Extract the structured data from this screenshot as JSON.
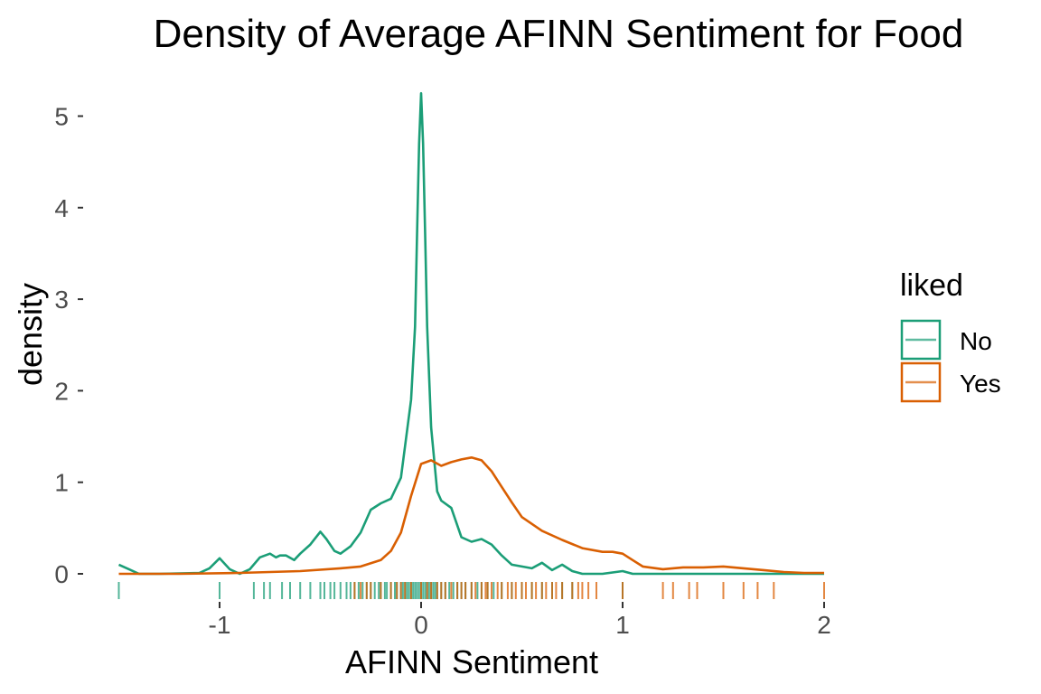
{
  "chart_data": {
    "type": "line",
    "title": "Density of Average AFINN Sentiment for Food",
    "xlabel": "AFINN Sentiment",
    "ylabel": "density",
    "xlim": [
      -1.5,
      2.0
    ],
    "ylim": [
      0,
      5.3
    ],
    "x_ticks": [
      -1,
      0,
      1,
      2
    ],
    "y_ticks": [
      0,
      1,
      2,
      3,
      4,
      5
    ],
    "x_tick_labels": [
      "-1",
      "0",
      "1",
      "2"
    ],
    "y_tick_labels": [
      "0",
      "1",
      "2",
      "3",
      "4",
      "5"
    ],
    "grid": false,
    "legend": {
      "title": "liked",
      "position": "right",
      "entries": [
        "No",
        "Yes"
      ]
    },
    "series": [
      {
        "name": "No",
        "color": "#1b9e77",
        "x": [
          -1.5,
          -1.45,
          -1.4,
          -1.3,
          -1.1,
          -1.05,
          -1.0,
          -0.95,
          -0.9,
          -0.85,
          -0.8,
          -0.75,
          -0.72,
          -0.7,
          -0.67,
          -0.63,
          -0.6,
          -0.55,
          -0.5,
          -0.47,
          -0.43,
          -0.4,
          -0.35,
          -0.3,
          -0.25,
          -0.2,
          -0.15,
          -0.1,
          -0.05,
          -0.03,
          -0.02,
          -0.01,
          0.0,
          0.01,
          0.02,
          0.03,
          0.05,
          0.08,
          0.1,
          0.15,
          0.2,
          0.25,
          0.3,
          0.35,
          0.4,
          0.45,
          0.5,
          0.55,
          0.6,
          0.65,
          0.7,
          0.75,
          0.8,
          0.9,
          1.0,
          1.05,
          1.2,
          1.5,
          2.0
        ],
        "y": [
          0.1,
          0.05,
          0.0,
          0.0,
          0.01,
          0.06,
          0.17,
          0.05,
          0.0,
          0.05,
          0.18,
          0.22,
          0.18,
          0.2,
          0.2,
          0.15,
          0.22,
          0.32,
          0.46,
          0.38,
          0.25,
          0.22,
          0.3,
          0.45,
          0.7,
          0.77,
          0.82,
          1.05,
          1.9,
          2.7,
          3.7,
          4.7,
          5.25,
          4.7,
          3.7,
          2.7,
          1.6,
          0.9,
          0.8,
          0.72,
          0.4,
          0.35,
          0.38,
          0.32,
          0.2,
          0.1,
          0.08,
          0.06,
          0.12,
          0.04,
          0.1,
          0.03,
          0.0,
          0.0,
          0.03,
          0.0,
          0.0,
          0.0,
          0.0
        ]
      },
      {
        "name": "Yes",
        "color": "#d95f02",
        "x": [
          -1.5,
          -1.2,
          -0.9,
          -0.6,
          -0.4,
          -0.3,
          -0.2,
          -0.15,
          -0.1,
          -0.05,
          0.0,
          0.05,
          0.1,
          0.15,
          0.2,
          0.25,
          0.3,
          0.35,
          0.4,
          0.45,
          0.5,
          0.6,
          0.7,
          0.8,
          0.9,
          0.95,
          1.0,
          1.05,
          1.1,
          1.2,
          1.3,
          1.4,
          1.5,
          1.6,
          1.7,
          1.8,
          1.9,
          2.0
        ],
        "y": [
          0.0,
          0.0,
          0.01,
          0.03,
          0.06,
          0.08,
          0.15,
          0.25,
          0.45,
          0.85,
          1.2,
          1.24,
          1.18,
          1.22,
          1.25,
          1.27,
          1.24,
          1.12,
          0.95,
          0.78,
          0.62,
          0.47,
          0.37,
          0.28,
          0.24,
          0.24,
          0.22,
          0.15,
          0.08,
          0.05,
          0.07,
          0.07,
          0.08,
          0.06,
          0.04,
          0.02,
          0.01,
          0.01
        ]
      }
    ],
    "rugs": [
      {
        "name": "No",
        "color": "#1b9e77",
        "x": [
          -1.5,
          -1.0,
          -0.83,
          -0.78,
          -0.75,
          -0.69,
          -0.65,
          -0.6,
          -0.55,
          -0.5,
          -0.48,
          -0.45,
          -0.43,
          -0.4,
          -0.37,
          -0.35,
          -0.33,
          -0.31,
          -0.29,
          -0.27,
          -0.25,
          -0.23,
          -0.21,
          -0.2,
          -0.18,
          -0.17,
          -0.15,
          -0.13,
          -0.12,
          -0.1,
          -0.09,
          -0.08,
          -0.07,
          -0.06,
          -0.05,
          -0.04,
          -0.03,
          -0.02,
          -0.01,
          0.0,
          0.01,
          0.02,
          0.03,
          0.04,
          0.05,
          0.06,
          0.07,
          0.08,
          0.1,
          0.12,
          0.14,
          0.16,
          0.18,
          0.2,
          0.22,
          0.25,
          0.28,
          0.3,
          0.33,
          0.36,
          0.4,
          0.45,
          0.5,
          0.55,
          0.6,
          0.65,
          0.7,
          0.75,
          1.0
        ]
      },
      {
        "name": "Yes",
        "color": "#d95f02",
        "x": [
          -0.33,
          -0.3,
          -0.27,
          -0.25,
          -0.2,
          -0.15,
          -0.12,
          -0.1,
          -0.08,
          -0.05,
          0.0,
          0.03,
          0.05,
          0.08,
          0.1,
          0.12,
          0.15,
          0.18,
          0.2,
          0.22,
          0.25,
          0.27,
          0.3,
          0.32,
          0.33,
          0.35,
          0.38,
          0.4,
          0.43,
          0.45,
          0.47,
          0.5,
          0.52,
          0.55,
          0.57,
          0.6,
          0.62,
          0.65,
          0.67,
          0.7,
          0.75,
          0.78,
          0.8,
          0.83,
          0.87,
          1.0,
          1.2,
          1.25,
          1.33,
          1.37,
          1.5,
          1.6,
          1.67,
          1.75,
          2.0
        ]
      }
    ]
  }
}
